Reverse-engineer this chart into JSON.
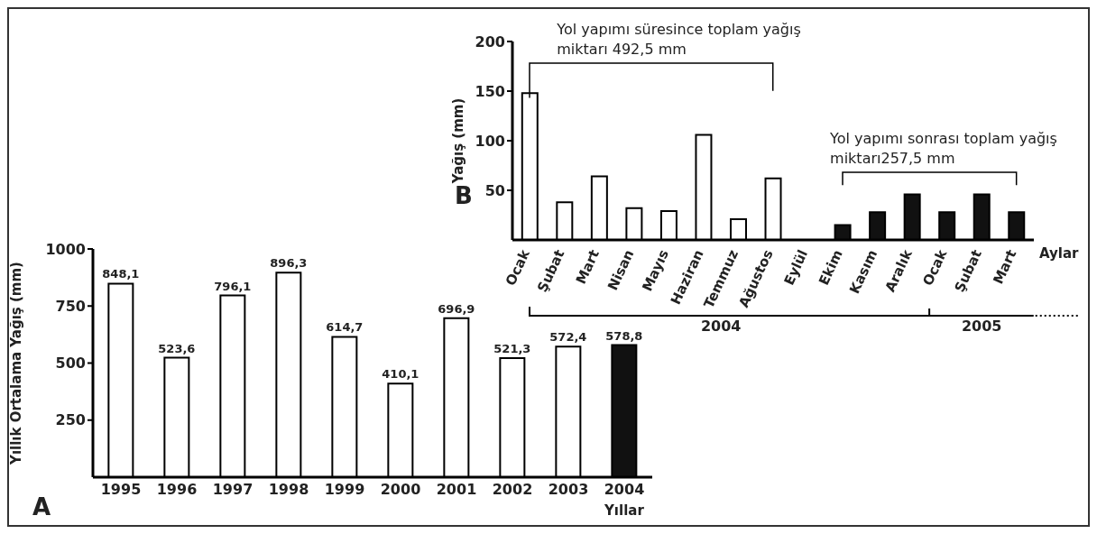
{
  "chart_data": [
    {
      "type": "bar",
      "title": "A",
      "xlabel": "Yıllar",
      "ylabel": "Yıllık Ortalama Yağış (mm)",
      "categories": [
        "1995",
        "1996",
        "1997",
        "1998",
        "1999",
        "2000",
        "2001",
        "2002",
        "2003",
        "2004"
      ],
      "values": [
        848.1,
        523.6,
        796.1,
        896.3,
        614.7,
        410.1,
        696.9,
        521.3,
        572.4,
        578.8
      ],
      "value_labels": [
        "848,1",
        "523,6",
        "796,1",
        "896,3",
        "614,7",
        "410,1",
        "696,9",
        "521,3",
        "572,4",
        "578,8"
      ],
      "colors": [
        "#ffffff",
        "#ffffff",
        "#ffffff",
        "#ffffff",
        "#ffffff",
        "#ffffff",
        "#ffffff",
        "#ffffff",
        "#ffffff",
        "#111111"
      ],
      "ylim": [
        0,
        1000
      ],
      "yticks": [
        250,
        500,
        750,
        1000
      ]
    },
    {
      "type": "bar",
      "title": "B",
      "xlabel": "Aylar",
      "ylabel": "Yağış (mm)",
      "categories": [
        "Ocak",
        "Şubat",
        "Mart",
        "Nisan",
        "Mayıs",
        "Haziran",
        "Temmuz",
        "Ağustos",
        "Eylül",
        "Ekim",
        "Kasım",
        "Aralık",
        "Ocak",
        "Şubat",
        "Mart"
      ],
      "values": [
        148,
        38,
        64,
        32,
        29,
        106,
        21,
        62,
        null,
        15,
        28,
        46,
        28,
        46,
        28
      ],
      "colors": [
        "#ffffff",
        "#ffffff",
        "#ffffff",
        "#ffffff",
        "#ffffff",
        "#ffffff",
        "#ffffff",
        "#ffffff",
        "#ffffff",
        "#111111",
        "#111111",
        "#111111",
        "#111111",
        "#111111",
        "#111111"
      ],
      "ylim": [
        0,
        200
      ],
      "yticks": [
        50,
        100,
        150,
        200
      ],
      "annotations": [
        "Yol yapımı süresince toplam yağış miktarı 492,5 mm",
        "Yol yapımı sonrası toplam yağış miktarı257,5 mm",
        "2004",
        "2005"
      ]
    }
  ]
}
